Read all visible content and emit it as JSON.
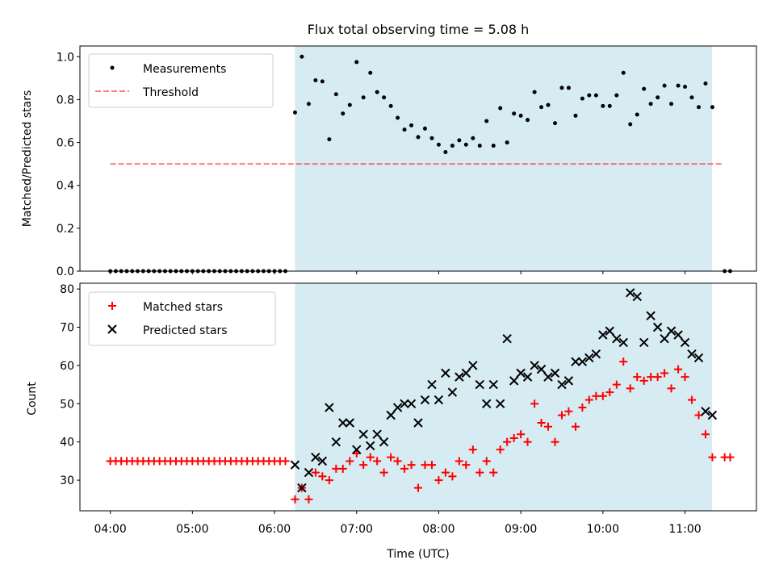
{
  "title": "Flux total observing time = 5.08 h",
  "colors": {
    "shade": "#add8e6",
    "threshold": "#ff0000",
    "matched": "#ff0000",
    "predicted": "#000000",
    "measurement": "#000000"
  },
  "chart_data": [
    {
      "type": "scatter",
      "ylabel": "Matched/Predicted stars",
      "ylim": [
        0,
        1.05
      ],
      "yticks": [
        0.0,
        0.2,
        0.4,
        0.6,
        0.8,
        1.0
      ],
      "ytick_labels": [
        "0.0",
        "0.2",
        "0.4",
        "0.6",
        "0.8",
        "1.0"
      ],
      "xlim": [
        3.63,
        11.87
      ],
      "shaded_region": [
        6.25,
        11.33
      ],
      "legend": {
        "placement": "upper-left",
        "entries": [
          "Measurements",
          "Threshold"
        ]
      },
      "threshold": {
        "name": "Threshold",
        "x": [
          4.0,
          11.47
        ],
        "y": 0.5
      },
      "measurements": {
        "name": "Measurements",
        "x": [
          4.0,
          4.067,
          4.133,
          4.2,
          4.267,
          4.333,
          4.4,
          4.467,
          4.533,
          4.6,
          4.667,
          4.733,
          4.8,
          4.867,
          4.933,
          5.0,
          5.067,
          5.133,
          5.2,
          5.267,
          5.333,
          5.4,
          5.467,
          5.533,
          5.6,
          5.667,
          5.733,
          5.8,
          5.867,
          5.933,
          6.0,
          6.067,
          6.133,
          6.25,
          6.333,
          6.417,
          6.5,
          6.583,
          6.667,
          6.75,
          6.833,
          6.917,
          7.0,
          7.083,
          7.167,
          7.25,
          7.333,
          7.417,
          7.5,
          7.583,
          7.667,
          7.75,
          7.833,
          7.917,
          8.0,
          8.083,
          8.167,
          8.25,
          8.333,
          8.417,
          8.5,
          8.583,
          8.667,
          8.75,
          8.833,
          8.917,
          9.0,
          9.083,
          9.167,
          9.25,
          9.333,
          9.417,
          9.5,
          9.583,
          9.667,
          9.75,
          9.833,
          9.917,
          10.0,
          10.083,
          10.167,
          10.25,
          10.333,
          10.417,
          10.5,
          10.583,
          10.667,
          10.75,
          10.833,
          10.917,
          11.0,
          11.083,
          11.167,
          11.25,
          11.333,
          11.483,
          11.55
        ],
        "y": [
          0,
          0,
          0,
          0,
          0,
          0,
          0,
          0,
          0,
          0,
          0,
          0,
          0,
          0,
          0,
          0,
          0,
          0,
          0,
          0,
          0,
          0,
          0,
          0,
          0,
          0,
          0,
          0,
          0,
          0,
          0,
          0,
          0,
          0.74,
          1.0,
          0.78,
          0.89,
          0.885,
          0.615,
          0.825,
          0.735,
          0.775,
          0.975,
          0.81,
          0.925,
          0.835,
          0.81,
          0.77,
          0.715,
          0.66,
          0.68,
          0.625,
          0.665,
          0.62,
          0.59,
          0.555,
          0.585,
          0.61,
          0.59,
          0.62,
          0.585,
          0.7,
          0.585,
          0.76,
          0.6,
          0.735,
          0.725,
          0.705,
          0.835,
          0.765,
          0.775,
          0.69,
          0.855,
          0.855,
          0.725,
          0.805,
          0.82,
          0.82,
          0.77,
          0.77,
          0.82,
          0.925,
          0.685,
          0.73,
          0.85,
          0.78,
          0.81,
          0.865,
          0.78,
          0.865,
          0.86,
          0.81,
          0.765,
          0.875,
          0.765,
          0,
          0
        ]
      }
    },
    {
      "type": "scatter",
      "xlabel": "Time (UTC)",
      "ylabel": "Count",
      "ylim": [
        22,
        81.5
      ],
      "yticks": [
        30,
        40,
        50,
        60,
        70,
        80
      ],
      "ytick_labels": [
        "30",
        "40",
        "50",
        "60",
        "70",
        "80"
      ],
      "xlim": [
        3.63,
        11.87
      ],
      "xticks": [
        4,
        5,
        6,
        7,
        8,
        9,
        10,
        11
      ],
      "xtick_labels": [
        "04:00",
        "05:00",
        "06:00",
        "07:00",
        "08:00",
        "09:00",
        "10:00",
        "11:00"
      ],
      "shaded_region": [
        6.25,
        11.33
      ],
      "legend": {
        "placement": "upper-left",
        "entries": [
          "Matched stars",
          "Predicted stars"
        ]
      },
      "series": [
        {
          "name": "Matched stars",
          "marker": "plus",
          "x": [
            4.0,
            4.067,
            4.133,
            4.2,
            4.267,
            4.333,
            4.4,
            4.467,
            4.533,
            4.6,
            4.667,
            4.733,
            4.8,
            4.867,
            4.933,
            5.0,
            5.067,
            5.133,
            5.2,
            5.267,
            5.333,
            5.4,
            5.467,
            5.533,
            5.6,
            5.667,
            5.733,
            5.8,
            5.867,
            5.933,
            6.0,
            6.067,
            6.133,
            6.25,
            6.333,
            6.417,
            6.5,
            6.583,
            6.667,
            6.75,
            6.833,
            6.917,
            7.0,
            7.083,
            7.167,
            7.25,
            7.333,
            7.417,
            7.5,
            7.583,
            7.667,
            7.75,
            7.833,
            7.917,
            8.0,
            8.083,
            8.167,
            8.25,
            8.333,
            8.417,
            8.5,
            8.583,
            8.667,
            8.75,
            8.833,
            8.917,
            9.0,
            9.083,
            9.167,
            9.25,
            9.333,
            9.417,
            9.5,
            9.583,
            9.667,
            9.75,
            9.833,
            9.917,
            10.0,
            10.083,
            10.167,
            10.25,
            10.333,
            10.417,
            10.5,
            10.583,
            10.667,
            10.75,
            10.833,
            10.917,
            11.0,
            11.083,
            11.167,
            11.25,
            11.333,
            11.483,
            11.55
          ],
          "y": [
            35,
            35,
            35,
            35,
            35,
            35,
            35,
            35,
            35,
            35,
            35,
            35,
            35,
            35,
            35,
            35,
            35,
            35,
            35,
            35,
            35,
            35,
            35,
            35,
            35,
            35,
            35,
            35,
            35,
            35,
            35,
            35,
            35,
            25,
            28,
            25,
            32,
            31,
            30,
            33,
            33,
            35,
            37,
            34,
            36,
            35,
            32,
            36,
            35,
            33,
            34,
            28,
            34,
            34,
            30,
            32,
            31,
            35,
            34,
            38,
            32,
            35,
            32,
            38,
            40,
            41,
            42,
            40,
            50,
            45,
            44,
            40,
            47,
            48,
            44,
            49,
            51,
            52,
            52,
            53,
            55,
            61,
            54,
            57,
            56,
            57,
            57,
            58,
            54,
            59,
            57,
            51,
            47,
            42,
            36,
            36,
            36
          ]
        },
        {
          "name": "Predicted stars",
          "marker": "x",
          "x": [
            6.25,
            6.333,
            6.417,
            6.5,
            6.583,
            6.667,
            6.75,
            6.833,
            6.917,
            7.0,
            7.083,
            7.167,
            7.25,
            7.333,
            7.417,
            7.5,
            7.583,
            7.667,
            7.75,
            7.833,
            7.917,
            8.0,
            8.083,
            8.167,
            8.25,
            8.333,
            8.417,
            8.5,
            8.583,
            8.667,
            8.75,
            8.833,
            8.917,
            9.0,
            9.083,
            9.167,
            9.25,
            9.333,
            9.417,
            9.5,
            9.583,
            9.667,
            9.75,
            9.833,
            9.917,
            10.0,
            10.083,
            10.167,
            10.25,
            10.333,
            10.417,
            10.5,
            10.583,
            10.667,
            10.75,
            10.833,
            10.917,
            11.0,
            11.083,
            11.167,
            11.25,
            11.333
          ],
          "y": [
            34,
            28,
            32,
            36,
            35,
            49,
            40,
            45,
            45,
            38,
            42,
            39,
            42,
            40,
            47,
            49,
            50,
            50,
            45,
            51,
            55,
            51,
            58,
            53,
            57,
            58,
            60,
            55,
            50,
            55,
            50,
            67,
            56,
            58,
            57,
            60,
            59,
            57,
            58,
            55,
            56,
            61,
            61,
            62,
            63,
            68,
            69,
            67,
            66,
            79,
            78,
            66,
            73,
            70,
            67,
            69,
            68,
            66,
            63,
            62,
            48,
            47
          ]
        }
      ]
    }
  ]
}
